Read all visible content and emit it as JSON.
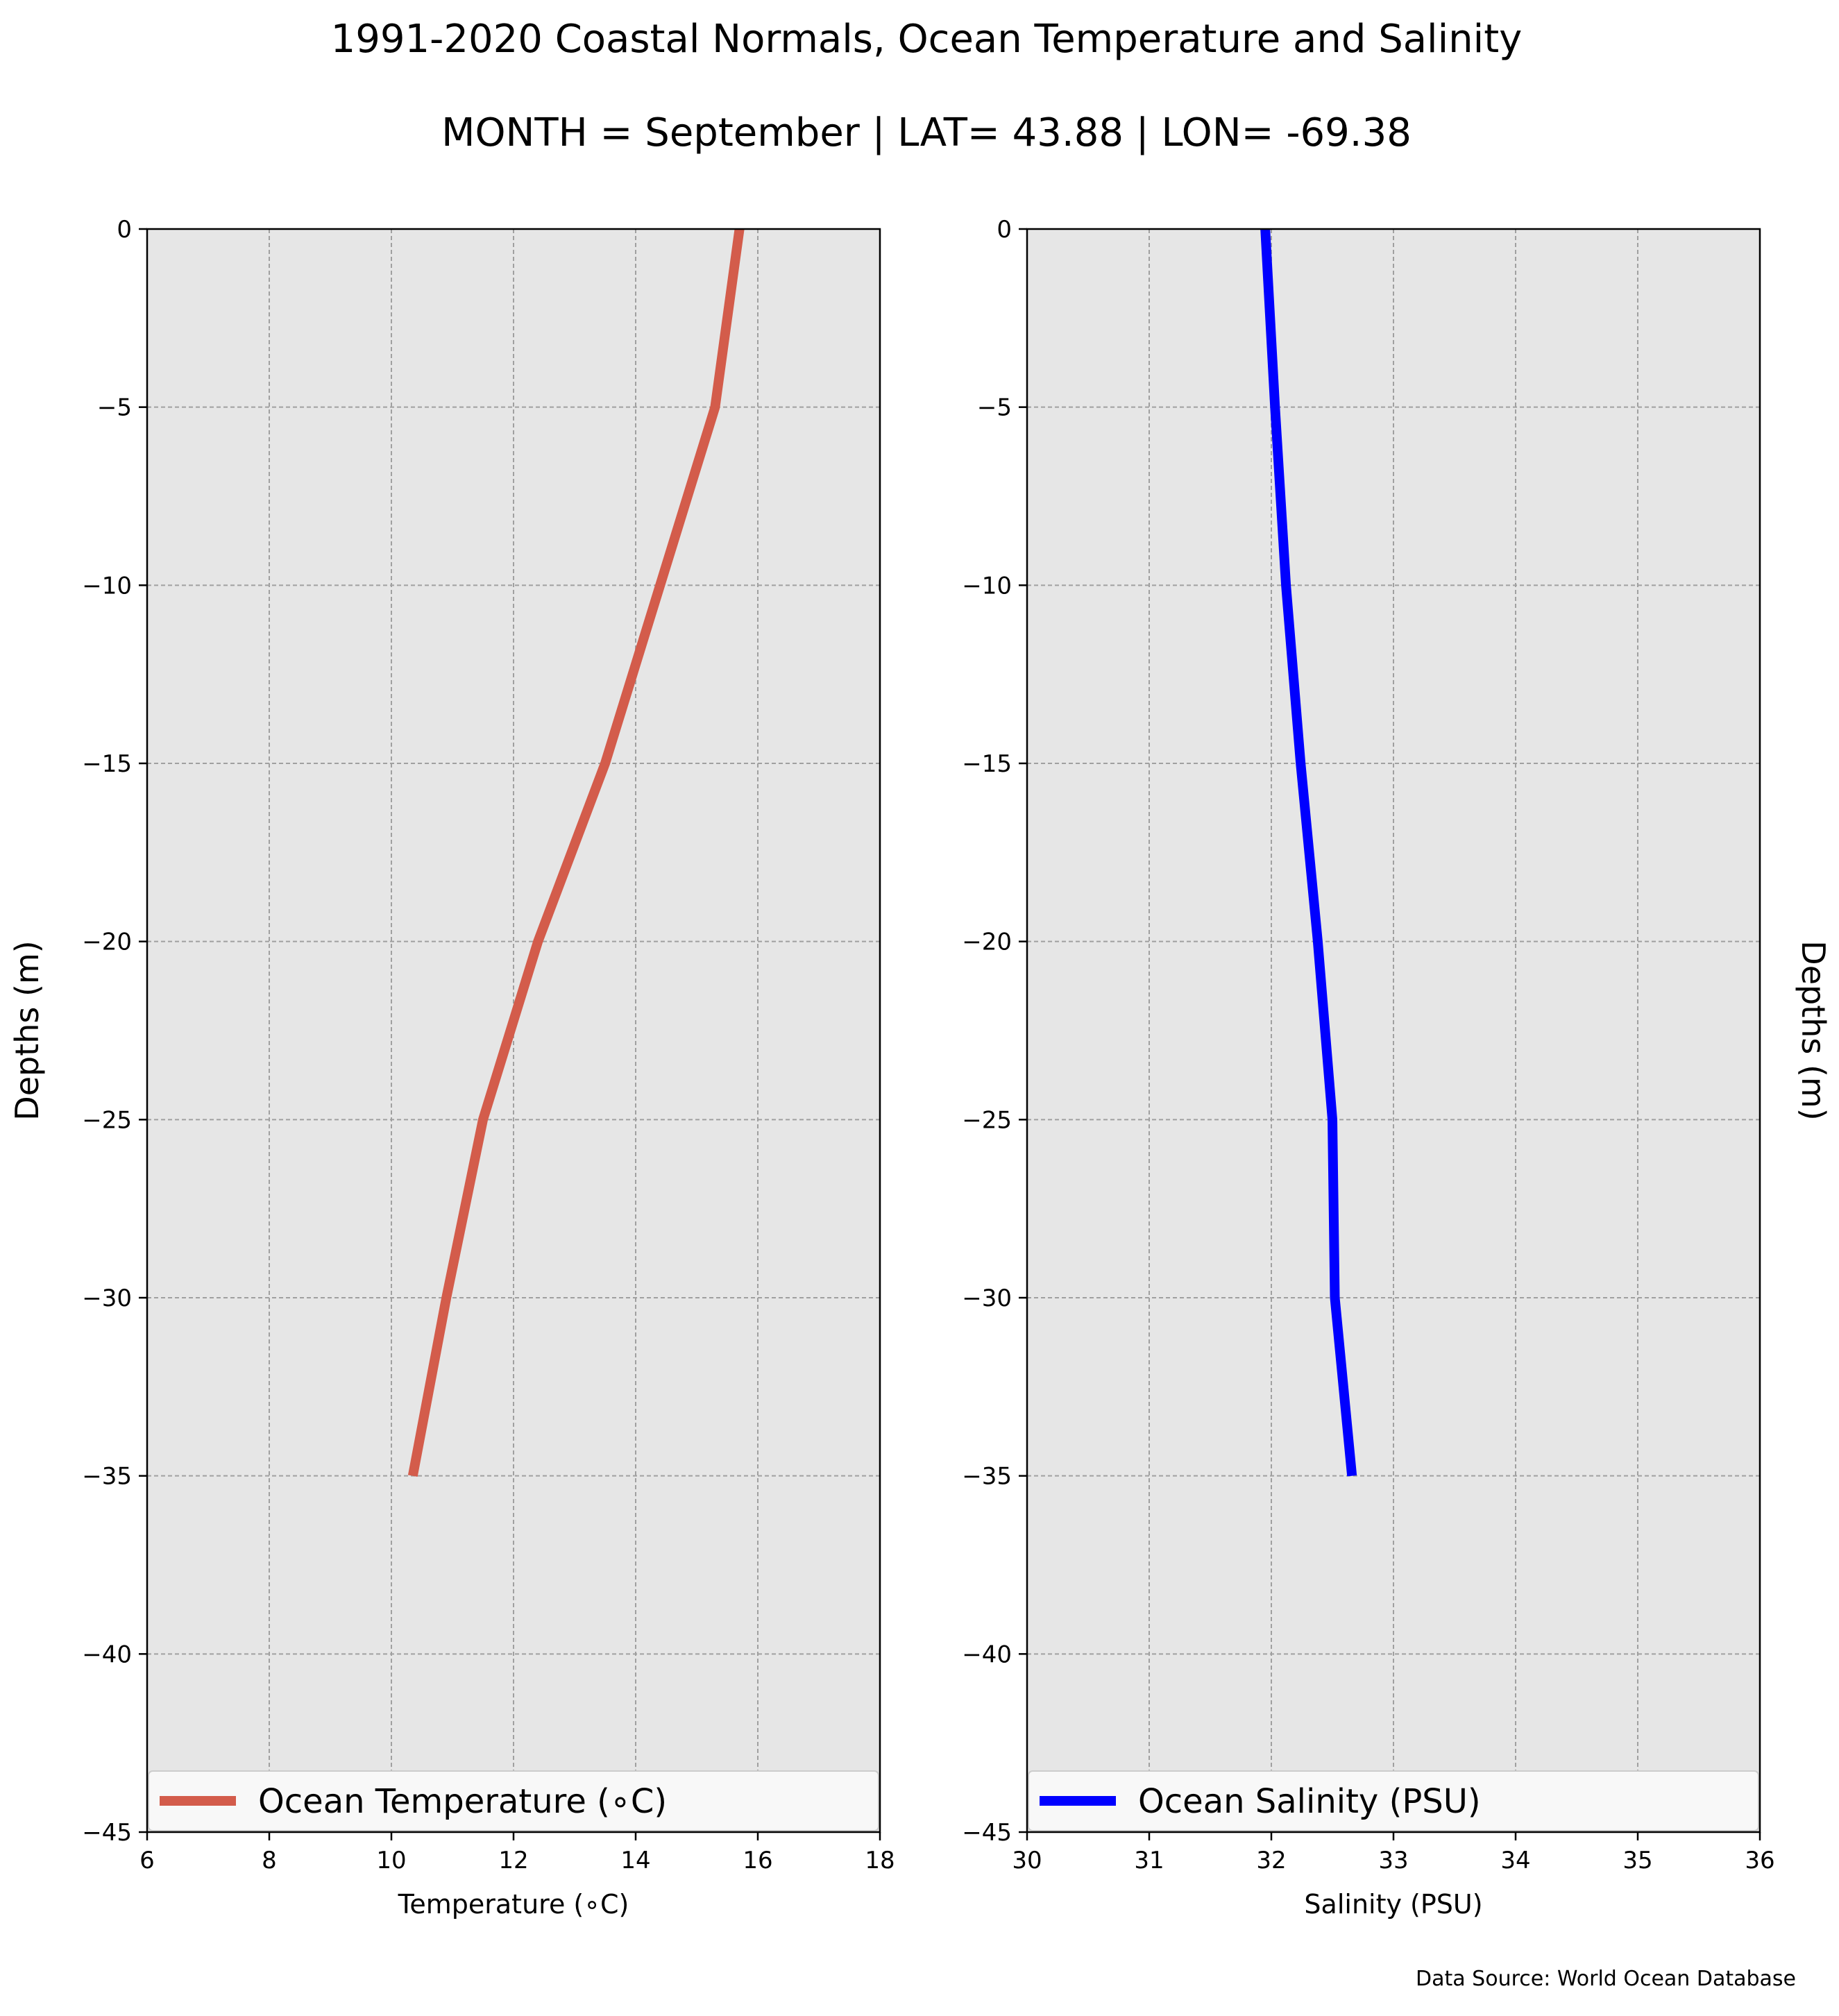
{
  "title": "1991-2020 Coastal Normals, Ocean Temperature and Salinity",
  "subtitle": "MONTH = September | LAT= 43.88 | LON= -69.38",
  "source": "Data Source: World Ocean Database",
  "colors": {
    "panel_background": "#e6e6e6",
    "grid": "#a0a0a0",
    "temperature_line": "#d35c4b",
    "salinity_line": "#0000ff",
    "legend_background": "#f8f8f8"
  },
  "chart_data": [
    {
      "type": "line",
      "xlabel": "Temperature (∘C)",
      "ylabel": "Depths (m)",
      "xlim": [
        6,
        18
      ],
      "ylim": [
        -45,
        0
      ],
      "xticks": [
        6,
        8,
        10,
        12,
        14,
        16,
        18
      ],
      "xtick_labels": [
        "6",
        "8",
        "10",
        "12",
        "14",
        "16",
        "18"
      ],
      "yticks": [
        0,
        -5,
        -10,
        -15,
        -20,
        -25,
        -30,
        -35,
        -40,
        -45
      ],
      "ytick_labels": [
        "0",
        "−5",
        "−10",
        "−15",
        "−20",
        "−25",
        "−30",
        "−35",
        "−40",
        "−45"
      ],
      "grid": true,
      "legend_position": "bottom",
      "series": [
        {
          "name": "Ocean Temperature (∘C)",
          "color": "#d35c4b",
          "x": [
            15.7,
            15.3,
            14.4,
            13.5,
            12.4,
            11.5,
            10.9,
            10.35
          ],
          "y": [
            0,
            -5,
            -10,
            -15,
            -20,
            -25,
            -30,
            -35
          ]
        }
      ]
    },
    {
      "type": "line",
      "xlabel": "Salinity (PSU)",
      "ylabel": "Depths (m)",
      "xlim": [
        30,
        36
      ],
      "ylim": [
        -45,
        0
      ],
      "xticks": [
        30,
        31,
        32,
        33,
        34,
        35,
        36
      ],
      "xtick_labels": [
        "30",
        "31",
        "32",
        "33",
        "34",
        "35",
        "36"
      ],
      "yticks": [
        0,
        -5,
        -10,
        -15,
        -20,
        -25,
        -30,
        -35,
        -40,
        -45
      ],
      "ytick_labels": [
        "0",
        "−5",
        "−10",
        "−15",
        "−20",
        "−25",
        "−30",
        "−35",
        "−40",
        "−45"
      ],
      "grid": true,
      "legend_position": "bottom",
      "series": [
        {
          "name": "Ocean Salinity (PSU)",
          "color": "#0000ff",
          "x": [
            31.95,
            32.03,
            32.12,
            32.24,
            32.38,
            32.5,
            32.52,
            32.66
          ],
          "y": [
            0,
            -5,
            -10,
            -15,
            -20,
            -25,
            -30,
            -35
          ]
        }
      ]
    }
  ]
}
